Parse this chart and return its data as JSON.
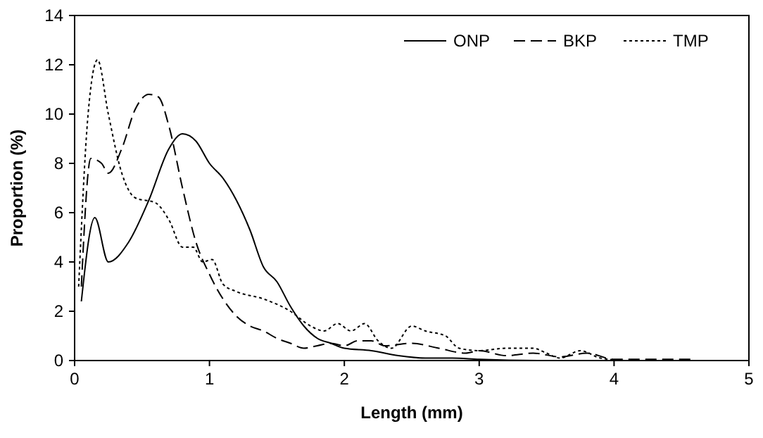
{
  "chart_data": {
    "type": "line",
    "xlabel": "Length (mm)",
    "ylabel": "Proportion (%)",
    "xlim": [
      0,
      5
    ],
    "xticks": [
      0,
      1,
      2,
      3,
      4,
      5
    ],
    "ylim": [
      0,
      14
    ],
    "yticks": [
      0,
      2,
      4,
      6,
      8,
      10,
      12,
      14
    ],
    "grid": false,
    "legend": "top right",
    "series": [
      {
        "name": "ONP",
        "color": "#000000",
        "line_style": "solid",
        "x": [
          0.05,
          0.15,
          0.25,
          0.4,
          0.55,
          0.7,
          0.8,
          0.9,
          1.0,
          1.1,
          1.2,
          1.3,
          1.4,
          1.5,
          1.6,
          1.7,
          1.8,
          1.9,
          2.0,
          2.2,
          2.4,
          2.6,
          2.8,
          3.0,
          3.5,
          4.0,
          4.6
        ],
        "values": [
          2.4,
          5.8,
          4.0,
          4.8,
          6.5,
          8.6,
          9.2,
          8.9,
          8.0,
          7.4,
          6.5,
          5.3,
          3.8,
          3.2,
          2.2,
          1.4,
          0.9,
          0.7,
          0.5,
          0.4,
          0.2,
          0.1,
          0.1,
          0.05,
          0,
          0,
          0
        ]
      },
      {
        "name": "BKP",
        "color": "#000000",
        "line_style": "dashed",
        "x": [
          0.05,
          0.12,
          0.2,
          0.25,
          0.35,
          0.45,
          0.55,
          0.62,
          0.7,
          0.8,
          0.9,
          1.0,
          1.1,
          1.2,
          1.3,
          1.4,
          1.5,
          1.6,
          1.7,
          1.8,
          1.9,
          2.0,
          2.1,
          2.2,
          2.3,
          2.5,
          2.7,
          2.9,
          3.0,
          3.2,
          3.4,
          3.6,
          3.8,
          4.0,
          4.3,
          4.6
        ],
        "values": [
          3.0,
          8.2,
          8.0,
          7.6,
          8.6,
          10.2,
          10.8,
          10.7,
          9.5,
          7.0,
          4.8,
          3.5,
          2.5,
          1.8,
          1.4,
          1.2,
          0.9,
          0.7,
          0.5,
          0.6,
          0.7,
          0.6,
          0.8,
          0.8,
          0.6,
          0.7,
          0.5,
          0.3,
          0.4,
          0.2,
          0.3,
          0.15,
          0.3,
          0.05,
          0.05,
          0.05
        ]
      },
      {
        "name": "TMP",
        "color": "#000000",
        "line_style": "dotted",
        "x": [
          0.03,
          0.1,
          0.17,
          0.25,
          0.35,
          0.45,
          0.6,
          0.7,
          0.8,
          0.88,
          0.95,
          1.02,
          1.1,
          1.2,
          1.4,
          1.6,
          1.75,
          1.85,
          1.95,
          2.05,
          2.15,
          2.25,
          2.35,
          2.5,
          2.6,
          2.75,
          2.85,
          3.0,
          3.2,
          3.4,
          3.5,
          3.6,
          3.75,
          3.9,
          4.1,
          4.6
        ],
        "values": [
          3,
          10,
          12.2,
          10,
          7.6,
          6.6,
          6.4,
          5.7,
          4.6,
          4.6,
          4.0,
          4.1,
          3.1,
          2.8,
          2.5,
          2.0,
          1.4,
          1.2,
          1.5,
          1.2,
          1.5,
          0.8,
          0.5,
          1.4,
          1.2,
          1.0,
          0.5,
          0.4,
          0.5,
          0.5,
          0.3,
          0.1,
          0.4,
          0.1,
          0,
          0
        ]
      }
    ]
  }
}
